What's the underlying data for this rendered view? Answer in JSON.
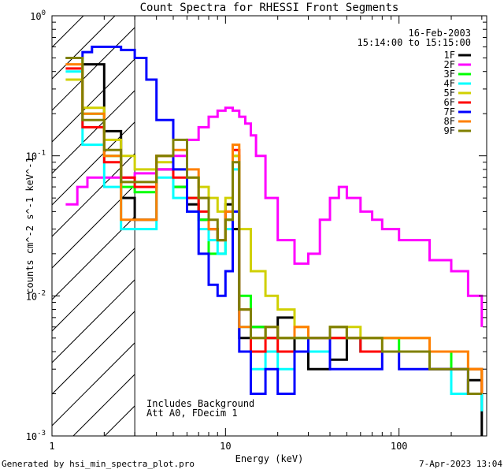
{
  "chart_data": {
    "type": "line",
    "title": "Count Spectra for RHESSI Front Segments",
    "xlabel": "Energy (keV)",
    "ylabel": "counts cm^-2 s^-1 keV^-1",
    "x_scale": "log",
    "y_scale": "log",
    "xlim": [
      1,
      320
    ],
    "ylim": [
      0.001,
      1.0
    ],
    "x_ticks": [
      {
        "value": 1,
        "label": "1"
      },
      {
        "value": 10,
        "label": "10"
      },
      {
        "value": 100,
        "label": "100"
      }
    ],
    "y_ticks": [
      {
        "value": 0.001,
        "base": "10",
        "exp": "-3"
      },
      {
        "value": 0.01,
        "base": "10",
        "exp": "-2"
      },
      {
        "value": 0.1,
        "base": "10",
        "exp": "-1"
      },
      {
        "value": 1,
        "base": "10",
        "exp": "0"
      }
    ],
    "hatched_region": [
      1,
      3
    ],
    "legend_header": [
      "16-Feb-2003",
      "15:14:00 to 15:15:00"
    ],
    "annotations": [
      "Includes Background",
      "Att A0, FDecim 1"
    ],
    "series": [
      {
        "name": "1F",
        "color": "#000000",
        "x": [
          1.5,
          2,
          2.5,
          3,
          4,
          5,
          6,
          7,
          8,
          9,
          10,
          11,
          12,
          14,
          17,
          20,
          25,
          30,
          40,
          50,
          60,
          80,
          100,
          150,
          200,
          250,
          300
        ],
        "y": [
          0.45,
          0.15,
          0.05,
          0.035,
          0.08,
          0.06,
          0.045,
          0.035,
          0.03,
          0.025,
          0.045,
          0.03,
          0.005,
          0.006,
          0.005,
          0.007,
          0.004,
          0.003,
          0.0035,
          0.005,
          0.004,
          0.004,
          0.004,
          0.003,
          0.002,
          0.0025,
          0.001
        ]
      },
      {
        "name": "2F",
        "color": "#ff00ff",
        "x": [
          1.2,
          1.4,
          1.6,
          2,
          2.5,
          3,
          4,
          5,
          6,
          7,
          8,
          9,
          10,
          11,
          12,
          13,
          14,
          15,
          17,
          20,
          25,
          30,
          35,
          40,
          45,
          50,
          60,
          70,
          80,
          100,
          150,
          200,
          250,
          300
        ],
        "y": [
          0.045,
          0.06,
          0.07,
          0.07,
          0.07,
          0.075,
          0.08,
          0.1,
          0.13,
          0.16,
          0.19,
          0.21,
          0.22,
          0.21,
          0.19,
          0.17,
          0.14,
          0.1,
          0.05,
          0.025,
          0.017,
          0.02,
          0.035,
          0.05,
          0.06,
          0.05,
          0.04,
          0.035,
          0.03,
          0.025,
          0.018,
          0.015,
          0.01,
          0.006
        ]
      },
      {
        "name": "3F",
        "color": "#00ff00",
        "x": [
          1.2,
          1.5,
          2,
          2.5,
          3,
          4,
          5,
          6,
          7,
          8,
          9,
          10,
          11,
          12,
          14,
          17,
          20,
          25,
          30,
          40,
          50,
          60,
          80,
          100,
          150,
          200,
          250,
          300
        ],
        "y": [
          0.5,
          0.2,
          0.1,
          0.06,
          0.055,
          0.1,
          0.06,
          0.05,
          0.035,
          0.02,
          0.02,
          0.035,
          0.1,
          0.01,
          0.006,
          0.005,
          0.005,
          0.005,
          0.004,
          0.006,
          0.005,
          0.005,
          0.005,
          0.004,
          0.004,
          0.003,
          0.003,
          0.0025
        ]
      },
      {
        "name": "4F",
        "color": "#00ffff",
        "x": [
          1.2,
          1.5,
          2,
          2.5,
          3,
          4,
          5,
          6,
          7,
          8,
          9,
          10,
          11,
          12,
          14,
          17,
          20,
          25,
          30,
          40,
          50,
          60,
          80,
          100,
          150,
          200,
          250,
          300
        ],
        "y": [
          0.4,
          0.12,
          0.06,
          0.03,
          0.03,
          0.07,
          0.05,
          0.04,
          0.03,
          0.025,
          0.02,
          0.03,
          0.08,
          0.006,
          0.003,
          0.004,
          0.003,
          0.004,
          0.004,
          0.005,
          0.005,
          0.004,
          0.004,
          0.004,
          0.003,
          0.002,
          0.002,
          0.0015
        ]
      },
      {
        "name": "5F",
        "color": "#d0d000",
        "x": [
          1.2,
          1.5,
          2,
          2.5,
          3,
          4,
          5,
          6,
          7,
          8,
          9,
          10,
          11,
          12,
          14,
          17,
          20,
          25,
          30,
          40,
          50,
          60,
          80,
          100,
          150,
          200,
          250,
          300
        ],
        "y": [
          0.35,
          0.22,
          0.13,
          0.1,
          0.08,
          0.09,
          0.08,
          0.07,
          0.06,
          0.05,
          0.04,
          0.05,
          0.1,
          0.03,
          0.015,
          0.01,
          0.008,
          0.006,
          0.005,
          0.005,
          0.006,
          0.005,
          0.005,
          0.005,
          0.004,
          0.004,
          0.003,
          0.003
        ]
      },
      {
        "name": "6F",
        "color": "#ff0000",
        "x": [
          1.2,
          1.5,
          2,
          2.5,
          3,
          4,
          5,
          6,
          7,
          8,
          9,
          10,
          11,
          12,
          14,
          17,
          20,
          25,
          30,
          40,
          50,
          60,
          80,
          100,
          150,
          200,
          250,
          300
        ],
        "y": [
          0.42,
          0.16,
          0.09,
          0.07,
          0.06,
          0.1,
          0.07,
          0.05,
          0.04,
          0.03,
          0.025,
          0.04,
          0.11,
          0.008,
          0.004,
          0.005,
          0.004,
          0.004,
          0.005,
          0.005,
          0.005,
          0.004,
          0.004,
          0.004,
          0.003,
          0.003,
          0.003,
          0.002
        ]
      },
      {
        "name": "7F",
        "color": "#0000ff",
        "x": [
          1.2,
          1.5,
          1.7,
          2,
          2.5,
          3,
          3.5,
          4,
          5,
          6,
          7,
          8,
          9,
          10,
          11,
          12,
          14,
          17,
          20,
          25,
          30,
          40,
          50,
          60,
          80,
          100,
          150,
          200,
          250,
          300
        ],
        "y": [
          0.5,
          0.55,
          0.6,
          0.6,
          0.57,
          0.5,
          0.35,
          0.18,
          0.08,
          0.04,
          0.02,
          0.012,
          0.01,
          0.015,
          0.04,
          0.004,
          0.002,
          0.003,
          0.002,
          0.004,
          0.005,
          0.003,
          0.003,
          0.003,
          0.004,
          0.003,
          0.003,
          0.003,
          0.002,
          0.002
        ]
      },
      {
        "name": "8F",
        "color": "#ff8000",
        "x": [
          1.2,
          1.5,
          2,
          2.5,
          3,
          4,
          5,
          6,
          7,
          8,
          9,
          10,
          11,
          12,
          14,
          17,
          20,
          25,
          30,
          40,
          50,
          60,
          80,
          100,
          150,
          200,
          250,
          300
        ],
        "y": [
          0.45,
          0.2,
          0.1,
          0.035,
          0.035,
          0.1,
          0.11,
          0.08,
          0.05,
          0.03,
          0.025,
          0.04,
          0.12,
          0.006,
          0.005,
          0.006,
          0.005,
          0.006,
          0.005,
          0.006,
          0.005,
          0.005,
          0.005,
          0.005,
          0.004,
          0.004,
          0.003,
          0.002
        ]
      },
      {
        "name": "9F",
        "color": "#808000",
        "x": [
          1.2,
          1.5,
          2,
          2.5,
          3,
          4,
          5,
          6,
          7,
          8,
          9,
          10,
          11,
          12,
          14,
          17,
          20,
          25,
          30,
          40,
          50,
          60,
          80,
          100,
          150,
          200,
          250,
          300
        ],
        "y": [
          0.5,
          0.18,
          0.11,
          0.065,
          0.065,
          0.1,
          0.13,
          0.07,
          0.05,
          0.035,
          0.025,
          0.035,
          0.09,
          0.008,
          0.005,
          0.006,
          0.005,
          0.005,
          0.005,
          0.006,
          0.005,
          0.005,
          0.004,
          0.004,
          0.003,
          0.003,
          0.002,
          0.002
        ]
      }
    ]
  },
  "footer": {
    "left": "Generated by hsi_min_spectra_plot.pro",
    "right": "7-Apr-2023 13:04"
  }
}
